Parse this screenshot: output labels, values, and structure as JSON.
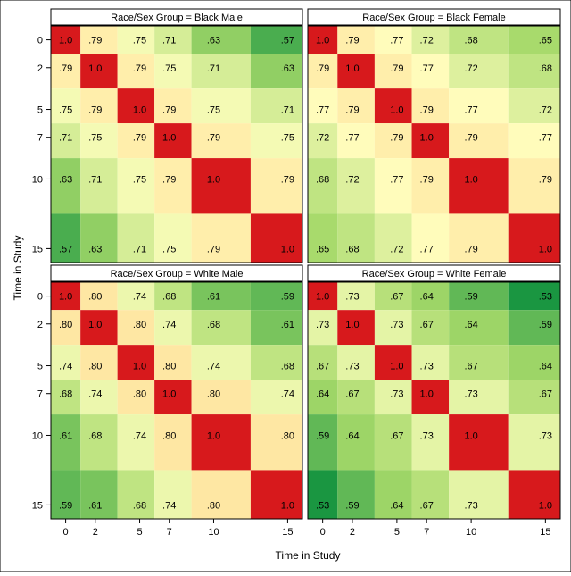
{
  "chart_data": {
    "type": "heatmap",
    "xlabel": "Time in Study",
    "ylabel": "Time in Study",
    "times": [
      0,
      2,
      5,
      7,
      10,
      15
    ],
    "tick_labels": [
      "0",
      "2",
      "5",
      "7",
      "10",
      "15"
    ],
    "axis_range": [
      -1,
      16
    ],
    "color_scale": {
      "low_value": 0.53,
      "high_value": 1.0,
      "stops": [
        "#1a9641",
        "#a6d96a",
        "#ffffbf",
        "#fdae61",
        "#d7191c"
      ]
    },
    "panels": [
      {
        "title": "Race/Sex Group = Black Male",
        "matrix": [
          [
            1.0,
            0.79,
            0.75,
            0.71,
            0.63,
            0.57
          ],
          [
            0.79,
            1.0,
            0.79,
            0.75,
            0.71,
            0.63
          ],
          [
            0.75,
            0.79,
            1.0,
            0.79,
            0.75,
            0.71
          ],
          [
            0.71,
            0.75,
            0.79,
            1.0,
            0.79,
            0.75
          ],
          [
            0.63,
            0.71,
            0.75,
            0.79,
            1.0,
            0.79
          ],
          [
            0.57,
            0.63,
            0.71,
            0.75,
            0.79,
            1.0
          ]
        ],
        "labels": [
          [
            "1.0",
            ".79",
            ".75",
            ".71",
            ".63",
            ".57"
          ],
          [
            ".79",
            "1.0",
            ".79",
            ".75",
            ".71",
            ".63"
          ],
          [
            ".75",
            ".79",
            "1.0",
            ".79",
            ".75",
            ".71"
          ],
          [
            ".71",
            ".75",
            ".79",
            "1.0",
            ".79",
            ".75"
          ],
          [
            ".63",
            ".71",
            ".75",
            ".79",
            "1.0",
            ".79"
          ],
          [
            ".57",
            ".63",
            ".71",
            ".75",
            ".79",
            "1.0"
          ]
        ]
      },
      {
        "title": "Race/Sex Group = Black Female",
        "matrix": [
          [
            1.0,
            0.79,
            0.77,
            0.72,
            0.68,
            0.65
          ],
          [
            0.79,
            1.0,
            0.79,
            0.77,
            0.72,
            0.68
          ],
          [
            0.77,
            0.79,
            1.0,
            0.79,
            0.77,
            0.72
          ],
          [
            0.72,
            0.77,
            0.79,
            1.0,
            0.79,
            0.77
          ],
          [
            0.68,
            0.72,
            0.77,
            0.79,
            1.0,
            0.79
          ],
          [
            0.65,
            0.68,
            0.72,
            0.77,
            0.79,
            1.0
          ]
        ],
        "labels": [
          [
            "1.0",
            ".79",
            ".77",
            ".72",
            ".68",
            ".65"
          ],
          [
            ".79",
            "1.0",
            ".79",
            ".77",
            ".72",
            ".68"
          ],
          [
            ".77",
            ".79",
            "1.0",
            ".79",
            ".77",
            ".72"
          ],
          [
            ".72",
            ".77",
            ".79",
            "1.0",
            ".79",
            ".77"
          ],
          [
            ".68",
            ".72",
            ".77",
            ".79",
            "1.0",
            ".79"
          ],
          [
            ".65",
            ".68",
            ".72",
            ".77",
            ".79",
            "1.0"
          ]
        ]
      },
      {
        "title": "Race/Sex Group = White Male",
        "matrix": [
          [
            1.0,
            0.8,
            0.74,
            0.68,
            0.61,
            0.59
          ],
          [
            0.8,
            1.0,
            0.8,
            0.74,
            0.68,
            0.61
          ],
          [
            0.74,
            0.8,
            1.0,
            0.8,
            0.74,
            0.68
          ],
          [
            0.68,
            0.74,
            0.8,
            1.0,
            0.8,
            0.74
          ],
          [
            0.61,
            0.68,
            0.74,
            0.8,
            1.0,
            0.8
          ],
          [
            0.59,
            0.61,
            0.68,
            0.74,
            0.8,
            1.0
          ]
        ],
        "labels": [
          [
            "1.0",
            ".80",
            ".74",
            ".68",
            ".61",
            ".59"
          ],
          [
            ".80",
            "1.0",
            ".80",
            ".74",
            ".68",
            ".61"
          ],
          [
            ".74",
            ".80",
            "1.0",
            ".80",
            ".74",
            ".68"
          ],
          [
            ".68",
            ".74",
            ".80",
            "1.0",
            ".80",
            ".74"
          ],
          [
            ".61",
            ".68",
            ".74",
            ".80",
            "1.0",
            ".80"
          ],
          [
            ".59",
            ".61",
            ".68",
            ".74",
            ".80",
            "1.0"
          ]
        ]
      },
      {
        "title": "Race/Sex Group = White Female",
        "matrix": [
          [
            1.0,
            0.73,
            0.67,
            0.64,
            0.59,
            0.53
          ],
          [
            0.73,
            1.0,
            0.73,
            0.67,
            0.64,
            0.59
          ],
          [
            0.67,
            0.73,
            1.0,
            0.73,
            0.67,
            0.64
          ],
          [
            0.64,
            0.67,
            0.73,
            1.0,
            0.73,
            0.67
          ],
          [
            0.59,
            0.64,
            0.67,
            0.73,
            1.0,
            0.73
          ],
          [
            0.53,
            0.59,
            0.64,
            0.67,
            0.73,
            1.0
          ]
        ],
        "labels": [
          [
            "1.0",
            ".73",
            ".67",
            ".64",
            ".59",
            ".53"
          ],
          [
            ".73",
            "1.0",
            ".73",
            ".67",
            ".64",
            ".59"
          ],
          [
            ".67",
            ".73",
            "1.0",
            ".73",
            ".67",
            ".64"
          ],
          [
            ".64",
            ".67",
            ".73",
            "1.0",
            ".73",
            ".67"
          ],
          [
            ".59",
            ".64",
            ".67",
            ".73",
            "1.0",
            ".73"
          ],
          [
            ".53",
            ".59",
            ".64",
            ".67",
            ".73",
            "1.0"
          ]
        ]
      }
    ]
  }
}
